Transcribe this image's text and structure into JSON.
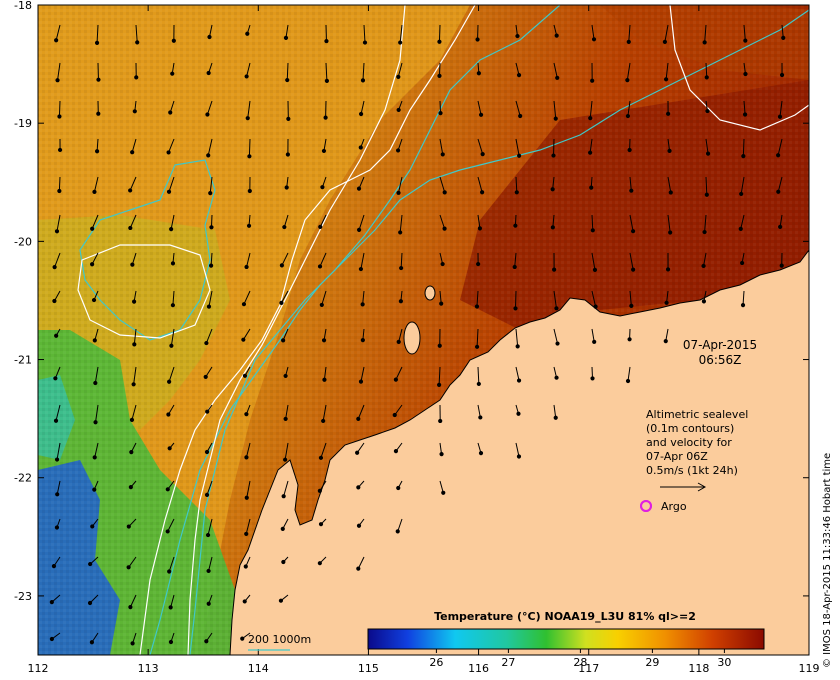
{
  "map": {
    "date": "07-Apr-2015",
    "time": "06:56Z",
    "lon_ticks": [
      "112",
      "113",
      "114",
      "115",
      "116",
      "117",
      "118",
      "119"
    ],
    "lat_ticks": [
      "-18",
      "-19",
      "-20",
      "-21",
      "-22",
      "-23"
    ],
    "lon_range": [
      112,
      119
    ],
    "lat_range": [
      -18,
      -23.5
    ],
    "colors": {
      "land": "#fbcc9c",
      "sst_warm": "#c24a00",
      "sst_hot": "#8b1a00",
      "sst_mid": "#e8a030",
      "sst_cool": "#3fbf40",
      "bathy_contour": "#40c8c8",
      "sealevel_contour": "#ffffff",
      "argo": "#e020e0"
    }
  },
  "legend": {
    "sealevel_lines": [
      "Altimetric sealevel",
      "(0.1m contours)",
      "and velocity for",
      "07-Apr 06Z",
      "0.5m/s (1kt 24h)"
    ],
    "argo_label": "Argo",
    "bathy_label": "200  1000m"
  },
  "colorbar": {
    "title": "Temperature (°C) NOAA19_L3U 81% ql>=2",
    "ticks": [
      "26",
      "27",
      "28",
      "29",
      "30"
    ],
    "range": [
      25.05,
      30.55
    ]
  },
  "credit": "© IMOS 18-Apr-2015 11:33:46 Hobart time"
}
